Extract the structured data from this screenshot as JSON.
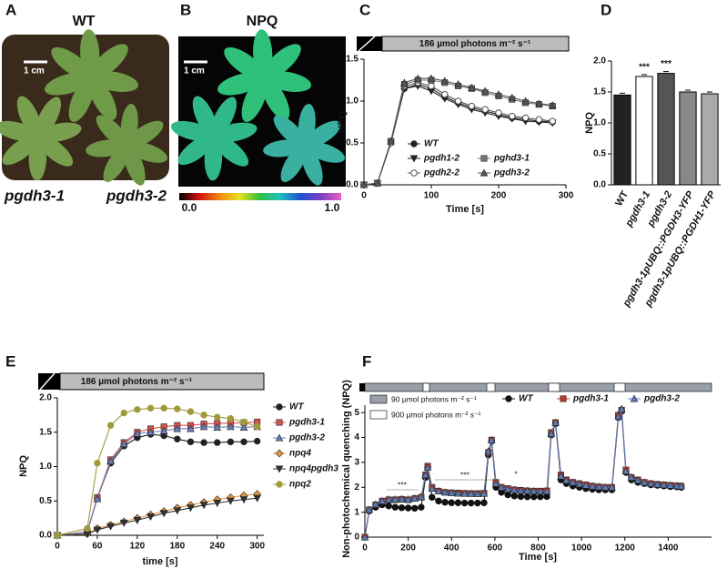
{
  "images": [
    {
      "letter": "A",
      "title": "WT",
      "scale_bar": "1 cm",
      "labels": [
        "pgdh3-1",
        "pgdh3-2"
      ]
    },
    {
      "letter": "B",
      "title": "NPQ",
      "scale_bar": "1 cm",
      "colorbar_ticks": [
        "0.0",
        "1.0"
      ]
    }
  ],
  "chart_data": [
    {
      "panel": "C",
      "type": "line",
      "light_label": "186 µmol photons m⁻² s⁻¹",
      "y_label": "NPQ",
      "x_label": "Time [s]",
      "x": [
        0,
        20,
        40,
        60,
        80,
        100,
        120,
        140,
        160,
        180,
        200,
        220,
        240,
        260,
        280
      ],
      "series": [
        {
          "name": "WT",
          "color": "#222222",
          "marker": "circle",
          "values": [
            0,
            0.02,
            0.5,
            1.15,
            1.2,
            1.15,
            1.05,
            0.98,
            0.92,
            0.88,
            0.84,
            0.8,
            0.78,
            0.76,
            0.75
          ]
        },
        {
          "name": "pgdh1-2",
          "color": "#222222",
          "marker": "down",
          "values": [
            0,
            0.02,
            0.5,
            1.15,
            1.18,
            1.12,
            1.03,
            0.96,
            0.9,
            0.86,
            0.82,
            0.79,
            0.76,
            0.75,
            0.74
          ]
        },
        {
          "name": "pgdh2-2",
          "color": "#555555",
          "marker": "open-circle",
          "values": [
            0,
            0.02,
            0.5,
            1.18,
            1.22,
            1.18,
            1.08,
            1.0,
            0.94,
            0.9,
            0.86,
            0.82,
            0.8,
            0.78,
            0.76
          ]
        },
        {
          "name": "pghd3-1",
          "color": "#777777",
          "marker": "square",
          "values": [
            0,
            0.02,
            0.52,
            1.2,
            1.25,
            1.25,
            1.22,
            1.18,
            1.15,
            1.1,
            1.06,
            1.02,
            0.98,
            0.96,
            0.94
          ]
        },
        {
          "name": "pgdh3-2",
          "color": "#555555",
          "marker": "triangle",
          "values": [
            0,
            0.02,
            0.52,
            1.22,
            1.27,
            1.27,
            1.24,
            1.2,
            1.16,
            1.12,
            1.08,
            1.04,
            1.0,
            0.97,
            0.95
          ]
        }
      ],
      "xlim": [
        0,
        300
      ],
      "xticks": [
        0,
        100,
        200,
        300
      ],
      "ylim": [
        0,
        1.5
      ],
      "yticks": [
        {
          "value": 0,
          "label": "0.0"
        },
        0.5,
        {
          "value": 1,
          "label": "1.0"
        },
        1.5
      ]
    },
    {
      "panel": "D",
      "type": "bar",
      "y_label": "NPQ",
      "categories": [
        "WT",
        "pgdh3-1",
        "pgdh3-2",
        "pgdh3-1pUBQ::PGDH3-YFP",
        "pgdh3-1pUBQ::PGDH1-YFP"
      ],
      "values": [
        1.45,
        1.75,
        1.8,
        1.5,
        1.47
      ],
      "colors": [
        "#222222",
        "#ffffff",
        "#555555",
        "#888888",
        "#aaaaaa"
      ],
      "significance": [
        null,
        "***",
        "***",
        null,
        null
      ],
      "ylim": [
        0,
        2
      ],
      "yticks": [
        {
          "value": 0,
          "label": "0.0"
        },
        0.5,
        {
          "value": 1,
          "label": "1.0"
        },
        1.5,
        {
          "value": 2,
          "label": "2.0"
        }
      ]
    },
    {
      "panel": "E",
      "type": "line",
      "light_label": "186 µmol photons m⁻² s⁻¹",
      "y_label": "NPQ",
      "x_label": "time [s]",
      "x": [
        0,
        45,
        60,
        80,
        100,
        120,
        140,
        160,
        180,
        200,
        220,
        240,
        260,
        280,
        300
      ],
      "series": [
        {
          "name": "WT",
          "color": "#222222",
          "marker": "circle",
          "values": [
            0,
            0.05,
            0.55,
            1.05,
            1.3,
            1.42,
            1.47,
            1.45,
            1.4,
            1.36,
            1.35,
            1.35,
            1.36,
            1.36,
            1.37
          ]
        },
        {
          "name": "pgdh3-1",
          "color": "#d9534f",
          "marker": "square",
          "values": [
            0,
            0.05,
            0.55,
            1.1,
            1.35,
            1.5,
            1.55,
            1.58,
            1.6,
            1.6,
            1.62,
            1.63,
            1.63,
            1.64,
            1.65
          ]
        },
        {
          "name": "pgdh3-2",
          "color": "#6a7fb8",
          "marker": "triangle",
          "values": [
            0,
            0.05,
            0.53,
            1.08,
            1.33,
            1.48,
            1.5,
            1.52,
            1.55,
            1.55,
            1.58,
            1.57,
            1.58,
            1.57,
            1.58
          ]
        },
        {
          "name": "npq4",
          "color": "#e8963a",
          "marker": "diamond",
          "values": [
            0,
            0.02,
            0.1,
            0.15,
            0.2,
            0.25,
            0.3,
            0.35,
            0.4,
            0.44,
            0.48,
            0.52,
            0.55,
            0.58,
            0.6
          ]
        },
        {
          "name": "npq4pgdh3",
          "color": "#333333",
          "marker": "down",
          "values": [
            0,
            0.02,
            0.08,
            0.13,
            0.18,
            0.22,
            0.27,
            0.32,
            0.36,
            0.4,
            0.44,
            0.47,
            0.5,
            0.52,
            0.54
          ]
        },
        {
          "name": "npq2",
          "color": "#a09a3c",
          "marker": "circle",
          "values": [
            0,
            0.1,
            1.05,
            1.6,
            1.78,
            1.83,
            1.85,
            1.85,
            1.84,
            1.8,
            1.75,
            1.72,
            1.7,
            1.65,
            1.58
          ]
        }
      ],
      "xlim": [
        0,
        310
      ],
      "xticks": [
        0,
        60,
        120,
        180,
        240,
        300
      ],
      "ylim": [
        0,
        2
      ],
      "yticks": [
        {
          "value": 0,
          "label": "0.0"
        },
        0.5,
        {
          "value": 1,
          "label": "1.0"
        },
        1.5,
        {
          "value": 2,
          "label": "2.0"
        }
      ]
    },
    {
      "panel": "F",
      "type": "line",
      "y_label": "Non-photochemical quenching (NPQ)",
      "x_label": "Time [s]",
      "light_legend": [
        "90 µmol photons m⁻² s⁻¹",
        "900 µmol photons m⁻² s⁻¹"
      ],
      "annotations": [
        "***",
        "***",
        "*"
      ],
      "x": [
        0,
        20,
        50,
        80,
        110,
        140,
        170,
        200,
        230,
        260,
        280,
        290,
        310,
        340,
        370,
        400,
        430,
        460,
        490,
        520,
        550,
        570,
        585,
        605,
        630,
        660,
        690,
        720,
        750,
        780,
        810,
        840,
        860,
        880,
        905,
        930,
        960,
        990,
        1020,
        1050,
        1080,
        1110,
        1140,
        1170,
        1185,
        1205,
        1230,
        1260,
        1290,
        1320,
        1350,
        1380,
        1410,
        1440,
        1460
      ],
      "series": [
        {
          "name": "WT",
          "color": "#111111",
          "marker": "circle",
          "values": [
            0,
            1.05,
            1.2,
            1.3,
            1.25,
            1.2,
            1.18,
            1.17,
            1.16,
            1.2,
            2.4,
            2.8,
            1.6,
            1.45,
            1.4,
            1.38,
            1.38,
            1.37,
            1.37,
            1.37,
            1.38,
            3.3,
            3.85,
            2.0,
            1.8,
            1.7,
            1.65,
            1.63,
            1.62,
            1.62,
            1.62,
            1.63,
            4.1,
            4.55,
            2.3,
            2.15,
            2.05,
            2.0,
            1.95,
            1.92,
            1.9,
            1.9,
            1.9,
            4.8,
            5.05,
            2.6,
            2.3,
            2.2,
            2.15,
            2.1,
            2.08,
            2.05,
            2.03,
            2.02,
            2.0
          ]
        },
        {
          "name": "pgdh3-1",
          "color": "#c0392b",
          "marker": "square",
          "values": [
            0,
            1.1,
            1.3,
            1.45,
            1.5,
            1.5,
            1.52,
            1.5,
            1.55,
            1.6,
            2.5,
            2.85,
            2.0,
            1.85,
            1.8,
            1.78,
            1.77,
            1.76,
            1.75,
            1.75,
            1.76,
            3.4,
            3.9,
            2.2,
            2.0,
            1.95,
            1.9,
            1.88,
            1.86,
            1.85,
            1.85,
            1.86,
            4.2,
            4.6,
            2.5,
            2.3,
            2.2,
            2.15,
            2.1,
            2.05,
            2.02,
            2.0,
            2.0,
            4.9,
            5.1,
            2.7,
            2.4,
            2.3,
            2.2,
            2.15,
            2.12,
            2.1,
            2.08,
            2.06,
            2.05
          ]
        },
        {
          "name": "pgdh3-2",
          "color": "#5b7bb5",
          "marker": "triangle",
          "values": [
            0,
            1.1,
            1.32,
            1.45,
            1.52,
            1.52,
            1.53,
            1.52,
            1.56,
            1.62,
            2.5,
            2.8,
            1.95,
            1.85,
            1.8,
            1.78,
            1.76,
            1.75,
            1.75,
            1.74,
            1.75,
            3.45,
            3.9,
            2.15,
            2.0,
            1.93,
            1.9,
            1.87,
            1.86,
            1.85,
            1.84,
            1.85,
            4.15,
            4.6,
            2.45,
            2.28,
            2.2,
            2.13,
            2.08,
            2.05,
            2.02,
            2.0,
            2.0,
            4.85,
            5.15,
            2.65,
            2.4,
            2.28,
            2.2,
            2.15,
            2.12,
            2.1,
            2.08,
            2.06,
            2.05
          ]
        }
      ],
      "xlim": [
        0,
        1600
      ],
      "xticks": [
        0,
        200,
        400,
        600,
        800,
        1000,
        1200,
        1400
      ],
      "ylim": [
        0,
        5.3
      ],
      "yticks": [
        0,
        1,
        2,
        3,
        4,
        5
      ]
    }
  ]
}
